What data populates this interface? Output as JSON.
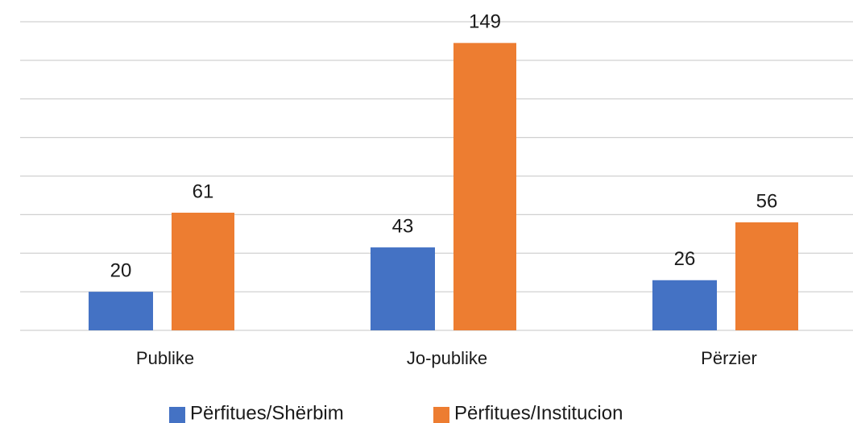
{
  "chart_data": {
    "type": "bar",
    "categories": [
      "Publike",
      "Jo-publike",
      "Përzier"
    ],
    "series": [
      {
        "name": "Përfitues/Shërbim",
        "color": "#4472c4",
        "values": [
          20,
          43,
          26
        ]
      },
      {
        "name": "Përfitues/Institucion",
        "color": "#ed7d31",
        "values": [
          61,
          149,
          56
        ]
      }
    ],
    "ylim": [
      0,
      160
    ],
    "yticks": [
      0,
      20,
      40,
      60,
      80,
      100,
      120,
      140,
      160
    ],
    "grid": true,
    "legend": "bottom"
  }
}
